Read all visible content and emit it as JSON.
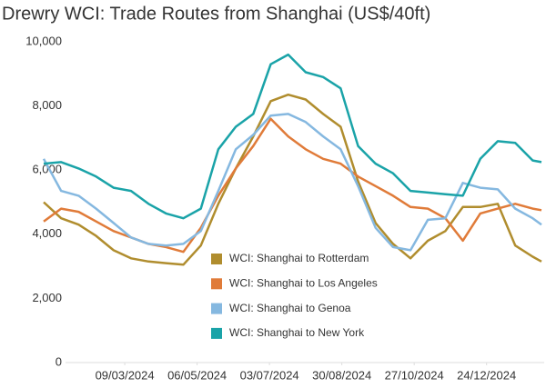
{
  "chart_data": {
    "type": "line",
    "title": "Drewry WCI: Trade Routes from Shanghai (US$/40ft)",
    "x": [
      "2024-01-04",
      "2024-01-18",
      "2024-02-01",
      "2024-02-15",
      "2024-02-29",
      "2024-03-14",
      "2024-03-28",
      "2024-04-11",
      "2024-04-25",
      "2024-05-09",
      "2024-05-23",
      "2024-06-06",
      "2024-06-20",
      "2024-07-04",
      "2024-07-18",
      "2024-08-01",
      "2024-08-15",
      "2024-08-29",
      "2024-09-12",
      "2024-09-26",
      "2024-10-10",
      "2024-10-24",
      "2024-11-07",
      "2024-11-21",
      "2024-12-05",
      "2024-12-19",
      "2025-01-02",
      "2025-01-16",
      "2025-01-30",
      "2025-02-06"
    ],
    "xlim": [
      "2024-01-04",
      "2025-02-06"
    ],
    "xticks": [
      {
        "value": "2024-03-09",
        "label": "09/03/2024"
      },
      {
        "value": "2024-05-06",
        "label": "06/05/2024"
      },
      {
        "value": "2024-07-03",
        "label": "03/07/2024"
      },
      {
        "value": "2024-08-30",
        "label": "30/08/2024"
      },
      {
        "value": "2024-10-27",
        "label": "27/10/2024"
      },
      {
        "value": "2024-12-24",
        "label": "24/12/2024"
      }
    ],
    "ylim": [
      0,
      10000
    ],
    "yticks": [
      0,
      {
        "value": 2000,
        "label": "2,000"
      },
      {
        "value": 4000,
        "label": "4,000"
      },
      {
        "value": 6000,
        "label": "6,000"
      },
      {
        "value": 8000,
        "label": "8,000"
      },
      {
        "value": 10000,
        "label": "10,000"
      }
    ],
    "grid": false,
    "series": [
      {
        "name": "WCI: Shanghai to Rotterdam",
        "color": "#b08d2e",
        "values": [
          5000,
          4500,
          4300,
          3950,
          3500,
          3250,
          3150,
          3100,
          3050,
          3650,
          4950,
          6050,
          7050,
          8150,
          8350,
          8200,
          7750,
          7350,
          5650,
          4350,
          3700,
          3250,
          3800,
          4100,
          4850,
          4850,
          4950,
          3650,
          3300,
          3150
        ]
      },
      {
        "name": "WCI: Shanghai to Los Angeles",
        "color": "#e07b39",
        "values": [
          4400,
          4800,
          4700,
          4400,
          4100,
          3900,
          3700,
          3600,
          3450,
          4200,
          5200,
          6050,
          6750,
          7600,
          7050,
          6650,
          6350,
          6200,
          5800,
          5500,
          5200,
          4850,
          4800,
          4500,
          3800,
          4650,
          4800,
          4950,
          4800,
          4750
        ]
      },
      {
        "name": "WCI: Shanghai to Genoa",
        "color": "#85b8e0",
        "values": [
          6350,
          5350,
          5200,
          4800,
          4350,
          3900,
          3700,
          3650,
          3700,
          4100,
          5350,
          6650,
          7100,
          7700,
          7750,
          7500,
          7050,
          6650,
          5500,
          4200,
          3600,
          3500,
          4450,
          4500,
          5600,
          5450,
          5400,
          4800,
          4500,
          4300
        ]
      },
      {
        "name": "WCI: Shanghai to New York",
        "color": "#1aa3a8",
        "values": [
          6200,
          6250,
          6050,
          5800,
          5450,
          5350,
          4950,
          4650,
          4500,
          4800,
          6650,
          7350,
          7750,
          9300,
          9600,
          9050,
          8900,
          8550,
          6750,
          6200,
          5900,
          5350,
          5300,
          5250,
          5200,
          6350,
          6900,
          6850,
          6300,
          6250
        ]
      }
    ]
  }
}
